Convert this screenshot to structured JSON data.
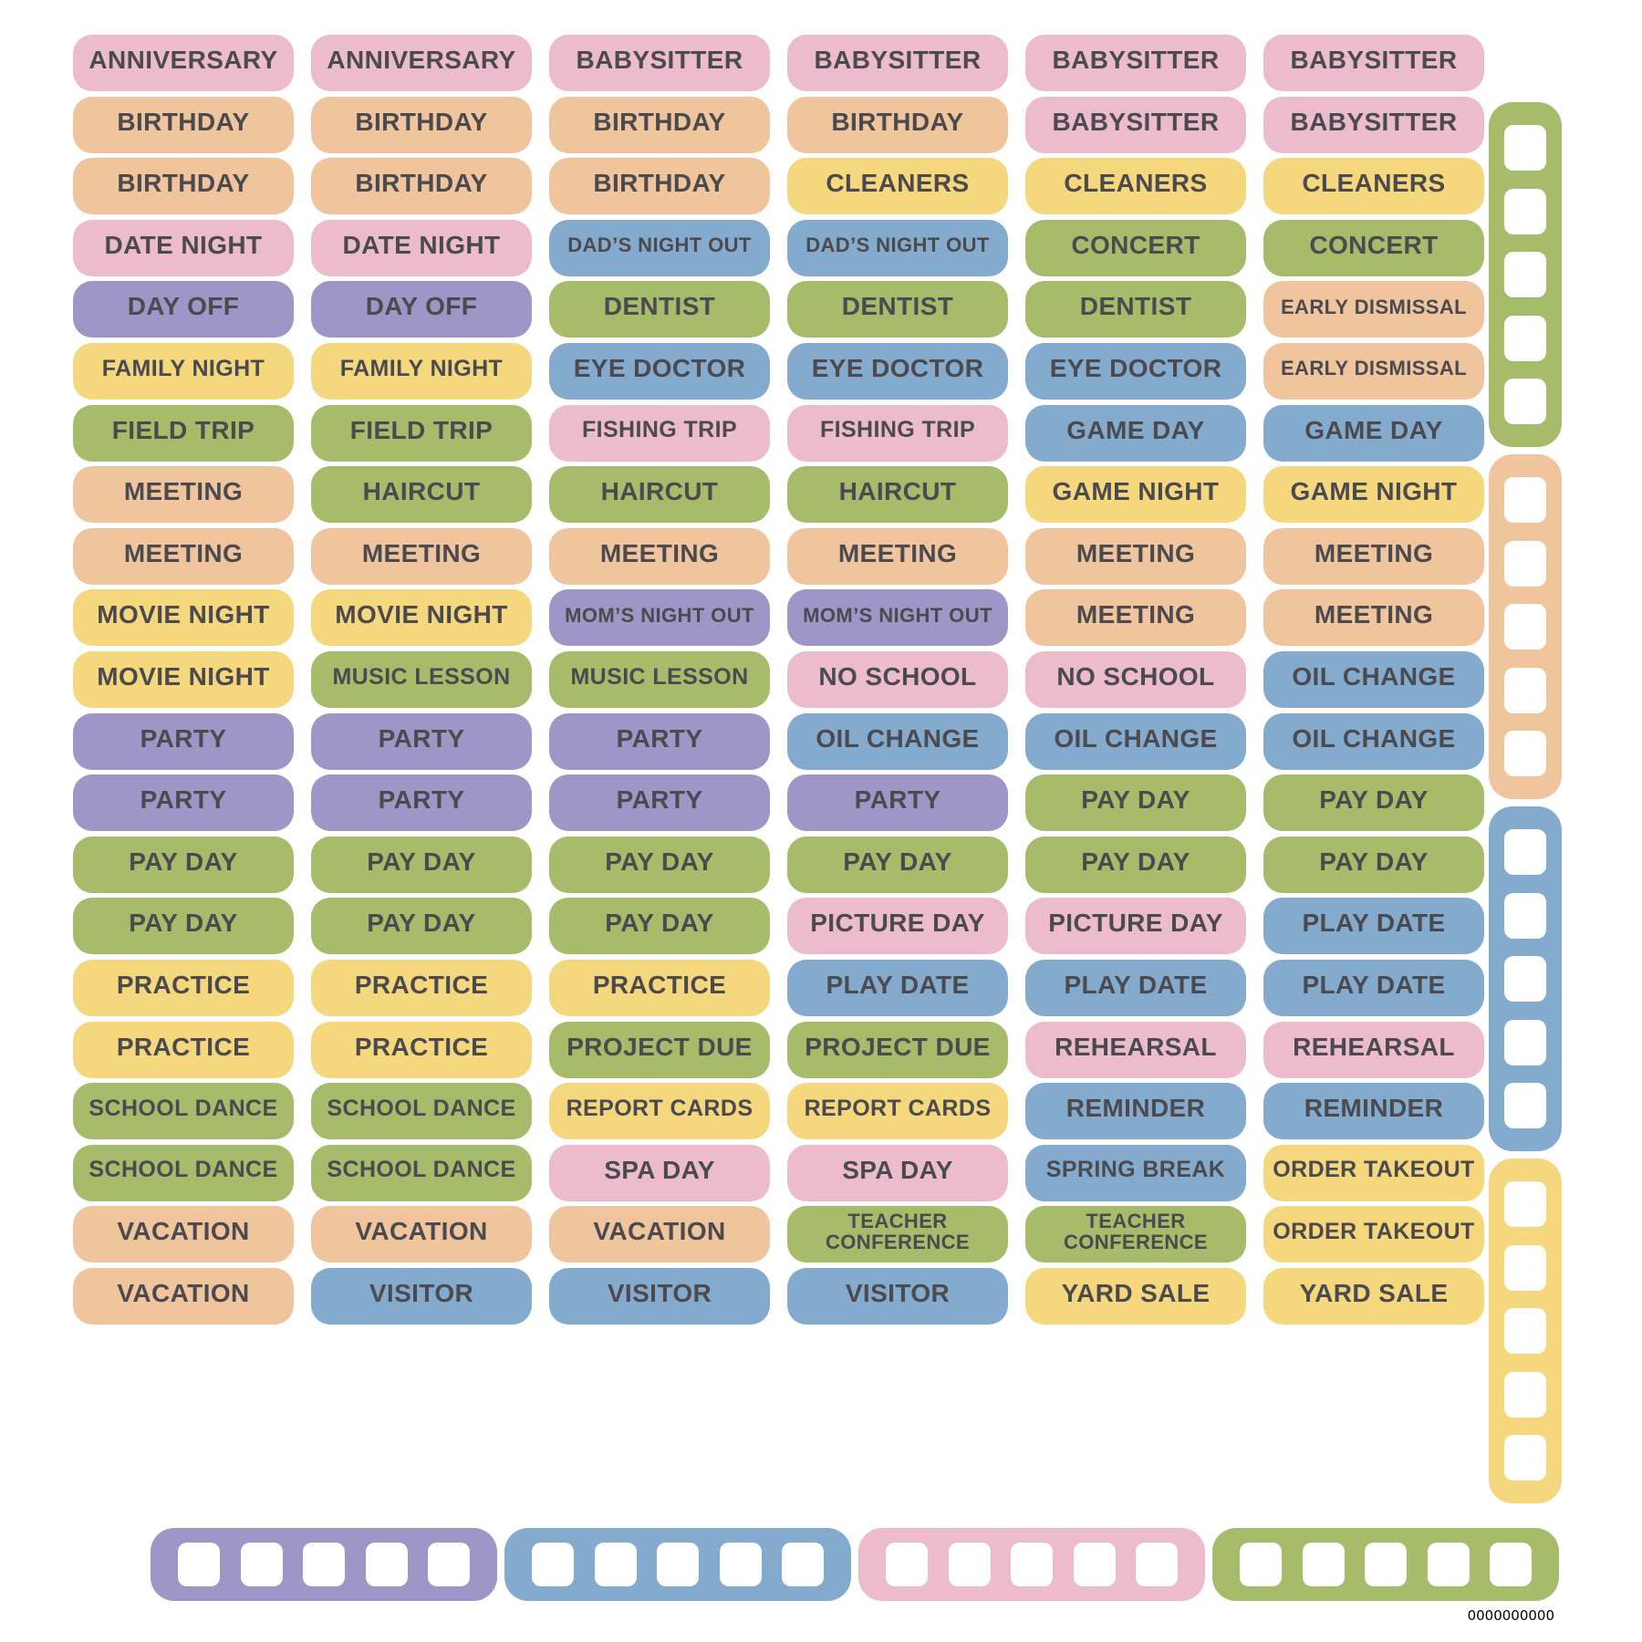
{
  "page": {
    "background": "#ffffff",
    "barcode_text": "0000000000"
  },
  "colors": {
    "pink": "#ecbccd",
    "orange": "#f0c49d",
    "yellow": "#f5d77d",
    "green": "#a6bc6a",
    "blue": "#84abce",
    "purple": "#9d96c6",
    "label_text": "#4b4a4f",
    "punch_square": "#ffffff"
  },
  "stickers": {
    "wrap_label": "TEACHER CONFERENCE",
    "rows": [
      [
        {
          "t": "ANNIVERSARY",
          "c": "pink"
        },
        {
          "t": "ANNIVERSARY",
          "c": "pink"
        },
        {
          "t": "BABYSITTER",
          "c": "pink"
        },
        {
          "t": "BABYSITTER",
          "c": "pink"
        },
        {
          "t": "BABYSITTER",
          "c": "pink"
        },
        {
          "t": "BABYSITTER",
          "c": "pink"
        }
      ],
      [
        {
          "t": "BIRTHDAY",
          "c": "orange"
        },
        {
          "t": "BIRTHDAY",
          "c": "orange"
        },
        {
          "t": "BIRTHDAY",
          "c": "orange"
        },
        {
          "t": "BIRTHDAY",
          "c": "orange"
        },
        {
          "t": "BABYSITTER",
          "c": "pink"
        },
        {
          "t": "BABYSITTER",
          "c": "pink"
        }
      ],
      [
        {
          "t": "BIRTHDAY",
          "c": "orange"
        },
        {
          "t": "BIRTHDAY",
          "c": "orange"
        },
        {
          "t": "BIRTHDAY",
          "c": "orange"
        },
        {
          "t": "CLEANERS",
          "c": "yellow"
        },
        {
          "t": "CLEANERS",
          "c": "yellow"
        },
        {
          "t": "CLEANERS",
          "c": "yellow"
        }
      ],
      [
        {
          "t": "DATE NIGHT",
          "c": "pink"
        },
        {
          "t": "DATE NIGHT",
          "c": "pink"
        },
        {
          "t": "DAD’S NIGHT OUT",
          "c": "blue"
        },
        {
          "t": "DAD’S NIGHT OUT",
          "c": "blue"
        },
        {
          "t": "CONCERT",
          "c": "green"
        },
        {
          "t": "CONCERT",
          "c": "green"
        }
      ],
      [
        {
          "t": "DAY OFF",
          "c": "purple"
        },
        {
          "t": "DAY OFF",
          "c": "purple"
        },
        {
          "t": "DENTIST",
          "c": "green"
        },
        {
          "t": "DENTIST",
          "c": "green"
        },
        {
          "t": "DENTIST",
          "c": "green"
        },
        {
          "t": "EARLY DISMISSAL",
          "c": "orange"
        }
      ],
      [
        {
          "t": "FAMILY NIGHT",
          "c": "yellow"
        },
        {
          "t": "FAMILY NIGHT",
          "c": "yellow"
        },
        {
          "t": "EYE DOCTOR",
          "c": "blue"
        },
        {
          "t": "EYE DOCTOR",
          "c": "blue"
        },
        {
          "t": "EYE DOCTOR",
          "c": "blue"
        },
        {
          "t": "EARLY DISMISSAL",
          "c": "orange"
        }
      ],
      [
        {
          "t": "FIELD TRIP",
          "c": "green"
        },
        {
          "t": "FIELD TRIP",
          "c": "green"
        },
        {
          "t": "FISHING TRIP",
          "c": "pink"
        },
        {
          "t": "FISHING TRIP",
          "c": "pink"
        },
        {
          "t": "GAME DAY",
          "c": "blue"
        },
        {
          "t": "GAME DAY",
          "c": "blue"
        }
      ],
      [
        {
          "t": "MEETING",
          "c": "orange"
        },
        {
          "t": "HAIRCUT",
          "c": "green"
        },
        {
          "t": "HAIRCUT",
          "c": "green"
        },
        {
          "t": "HAIRCUT",
          "c": "green"
        },
        {
          "t": "GAME NIGHT",
          "c": "yellow"
        },
        {
          "t": "GAME NIGHT",
          "c": "yellow"
        }
      ],
      [
        {
          "t": "MEETING",
          "c": "orange"
        },
        {
          "t": "MEETING",
          "c": "orange"
        },
        {
          "t": "MEETING",
          "c": "orange"
        },
        {
          "t": "MEETING",
          "c": "orange"
        },
        {
          "t": "MEETING",
          "c": "orange"
        },
        {
          "t": "MEETING",
          "c": "orange"
        }
      ],
      [
        {
          "t": "MOVIE NIGHT",
          "c": "yellow"
        },
        {
          "t": "MOVIE NIGHT",
          "c": "yellow"
        },
        {
          "t": "MOM’S NIGHT OUT",
          "c": "purple"
        },
        {
          "t": "MOM’S NIGHT OUT",
          "c": "purple"
        },
        {
          "t": "MEETING",
          "c": "orange"
        },
        {
          "t": "MEETING",
          "c": "orange"
        }
      ],
      [
        {
          "t": "MOVIE NIGHT",
          "c": "yellow"
        },
        {
          "t": "MUSIC LESSON",
          "c": "green"
        },
        {
          "t": "MUSIC LESSON",
          "c": "green"
        },
        {
          "t": "NO SCHOOL",
          "c": "pink"
        },
        {
          "t": "NO SCHOOL",
          "c": "pink"
        },
        {
          "t": "OIL CHANGE",
          "c": "blue"
        }
      ],
      [
        {
          "t": "PARTY",
          "c": "purple"
        },
        {
          "t": "PARTY",
          "c": "purple"
        },
        {
          "t": "PARTY",
          "c": "purple"
        },
        {
          "t": "OIL CHANGE",
          "c": "blue"
        },
        {
          "t": "OIL CHANGE",
          "c": "blue"
        },
        {
          "t": "OIL CHANGE",
          "c": "blue"
        }
      ],
      [
        {
          "t": "PARTY",
          "c": "purple"
        },
        {
          "t": "PARTY",
          "c": "purple"
        },
        {
          "t": "PARTY",
          "c": "purple"
        },
        {
          "t": "PARTY",
          "c": "purple"
        },
        {
          "t": "PAY DAY",
          "c": "green"
        },
        {
          "t": "PAY DAY",
          "c": "green"
        }
      ],
      [
        {
          "t": "PAY DAY",
          "c": "green"
        },
        {
          "t": "PAY DAY",
          "c": "green"
        },
        {
          "t": "PAY DAY",
          "c": "green"
        },
        {
          "t": "PAY DAY",
          "c": "green"
        },
        {
          "t": "PAY DAY",
          "c": "green"
        },
        {
          "t": "PAY DAY",
          "c": "green"
        }
      ],
      [
        {
          "t": "PAY DAY",
          "c": "green"
        },
        {
          "t": "PAY DAY",
          "c": "green"
        },
        {
          "t": "PAY DAY",
          "c": "green"
        },
        {
          "t": "PICTURE DAY",
          "c": "pink"
        },
        {
          "t": "PICTURE DAY",
          "c": "pink"
        },
        {
          "t": "PLAY DATE",
          "c": "blue"
        }
      ],
      [
        {
          "t": "PRACTICE",
          "c": "yellow"
        },
        {
          "t": "PRACTICE",
          "c": "yellow"
        },
        {
          "t": "PRACTICE",
          "c": "yellow"
        },
        {
          "t": "PLAY DATE",
          "c": "blue"
        },
        {
          "t": "PLAY DATE",
          "c": "blue"
        },
        {
          "t": "PLAY DATE",
          "c": "blue"
        }
      ],
      [
        {
          "t": "PRACTICE",
          "c": "yellow"
        },
        {
          "t": "PRACTICE",
          "c": "yellow"
        },
        {
          "t": "PROJECT DUE",
          "c": "green"
        },
        {
          "t": "PROJECT DUE",
          "c": "green"
        },
        {
          "t": "REHEARSAL",
          "c": "pink"
        },
        {
          "t": "REHEARSAL",
          "c": "pink"
        }
      ],
      [
        {
          "t": "SCHOOL DANCE",
          "c": "green"
        },
        {
          "t": "SCHOOL DANCE",
          "c": "green"
        },
        {
          "t": "REPORT CARDS",
          "c": "yellow"
        },
        {
          "t": "REPORT CARDS",
          "c": "yellow"
        },
        {
          "t": "REMINDER",
          "c": "blue"
        },
        {
          "t": "REMINDER",
          "c": "blue"
        }
      ],
      [
        {
          "t": "SCHOOL DANCE",
          "c": "green"
        },
        {
          "t": "SCHOOL DANCE",
          "c": "green"
        },
        {
          "t": "SPA DAY",
          "c": "pink"
        },
        {
          "t": "SPA DAY",
          "c": "pink"
        },
        {
          "t": "SPRING BREAK",
          "c": "blue"
        },
        {
          "t": "ORDER TAKEOUT",
          "c": "yellow"
        }
      ],
      [
        {
          "t": "VACATION",
          "c": "orange"
        },
        {
          "t": "VACATION",
          "c": "orange"
        },
        {
          "t": "VACATION",
          "c": "orange"
        },
        {
          "t": "TEACHER CONFERENCE",
          "c": "green"
        },
        {
          "t": "TEACHER CONFERENCE",
          "c": "green"
        },
        {
          "t": "ORDER TAKEOUT",
          "c": "yellow"
        }
      ],
      [
        {
          "t": "VACATION",
          "c": "orange"
        },
        {
          "t": "VISITOR",
          "c": "blue"
        },
        {
          "t": "VISITOR",
          "c": "blue"
        },
        {
          "t": "VISITOR",
          "c": "blue"
        },
        {
          "t": "YARD SALE",
          "c": "yellow"
        },
        {
          "t": "YARD SALE",
          "c": "yellow"
        }
      ]
    ]
  },
  "right_strip": {
    "segments": [
      {
        "color": "green",
        "squares": 5
      },
      {
        "color": "orange",
        "squares": 5
      },
      {
        "color": "blue",
        "squares": 5
      },
      {
        "color": "yellow",
        "squares": 5
      }
    ]
  },
  "bottom_strip": {
    "segments": [
      {
        "color": "purple",
        "squares": 5
      },
      {
        "color": "blue",
        "squares": 5
      },
      {
        "color": "pink",
        "squares": 5
      },
      {
        "color": "green",
        "squares": 5
      }
    ]
  }
}
